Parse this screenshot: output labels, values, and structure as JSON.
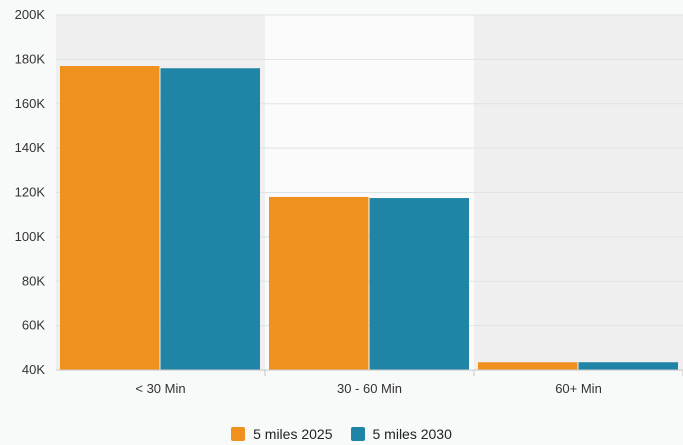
{
  "chart_data": {
    "type": "bar",
    "title": "",
    "xlabel": "",
    "ylabel": "",
    "categories": [
      "< 30 Min",
      "30 - 60 Min",
      "60+ Min"
    ],
    "series": [
      {
        "name": "5 miles 2025",
        "values": [
          177000,
          118000,
          43500
        ],
        "color": "#f0901e"
      },
      {
        "name": "5 miles 2030",
        "values": [
          176000,
          117500,
          43500
        ],
        "color": "#1f84a5"
      }
    ],
    "ylim": [
      40000,
      200000
    ],
    "y_ticks": [
      {
        "value": 40000,
        "label": "40K"
      },
      {
        "value": 60000,
        "label": "60K"
      },
      {
        "value": 80000,
        "label": "80K"
      },
      {
        "value": 100000,
        "label": "100K"
      },
      {
        "value": 120000,
        "label": "120K"
      },
      {
        "value": 140000,
        "label": "140K"
      },
      {
        "value": 160000,
        "label": "160K"
      },
      {
        "value": 180000,
        "label": "180K"
      },
      {
        "value": 200000,
        "label": "200K"
      }
    ],
    "grid": true,
    "legend_position": "bottom-center",
    "colors": {
      "band_shade": "#efefef",
      "band_light": "#fbfbfb",
      "gridline": "#dfe3e4",
      "axis": "#c8c8c8"
    }
  }
}
